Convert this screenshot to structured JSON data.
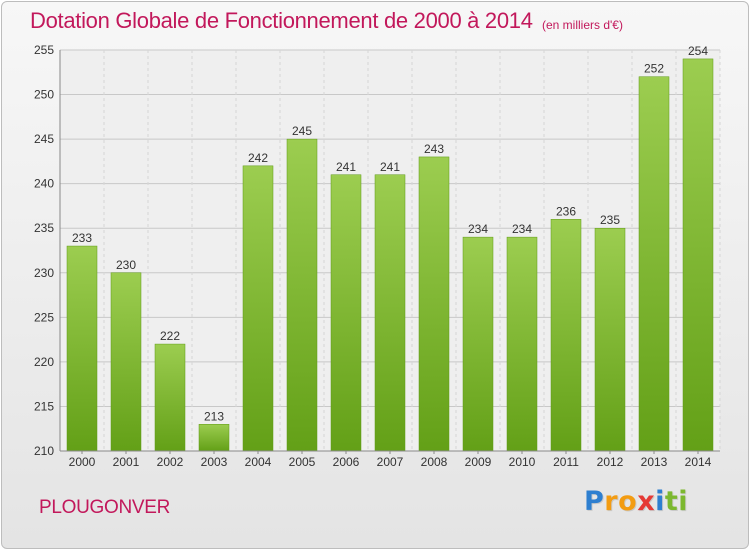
{
  "chart_data": {
    "type": "bar",
    "title": "Dotation Globale de Fonctionnement de 2000 à 2014",
    "subtitle": "(en milliers d'€)",
    "categories": [
      "2000",
      "2001",
      "2002",
      "2003",
      "2004",
      "2005",
      "2006",
      "2007",
      "2008",
      "2009",
      "2010",
      "2011",
      "2012",
      "2013",
      "2014"
    ],
    "values": [
      233,
      230,
      222,
      213,
      242,
      245,
      241,
      241,
      243,
      234,
      234,
      236,
      235,
      252,
      254
    ],
    "ylim": [
      210,
      255
    ],
    "yticks": [
      210,
      215,
      220,
      225,
      230,
      235,
      240,
      245,
      250,
      255
    ],
    "grid": true,
    "bar_color": "#7cb82f"
  },
  "footer": {
    "city": "PLOUGONVER",
    "logo_letters": [
      "P",
      "r",
      "o",
      "x",
      "i",
      "t",
      "i"
    ],
    "logo_colors": [
      "#2e7fd0",
      "#f39c12",
      "#f39c12",
      "#e53935",
      "#2e7fd0",
      "#7cb82f",
      "#7cb82f"
    ]
  }
}
